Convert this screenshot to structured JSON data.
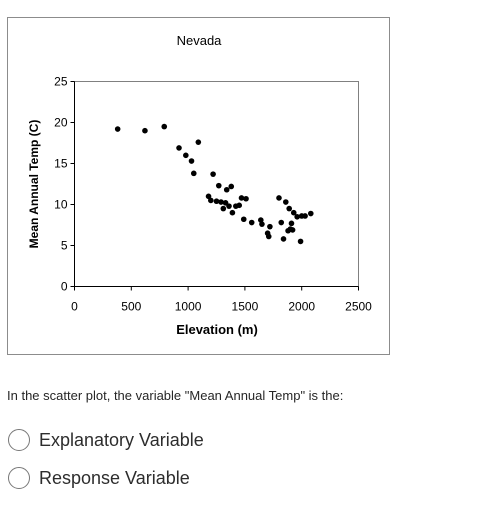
{
  "chart_data": {
    "type": "scatter",
    "title": "Nevada",
    "xlabel": "Elevation (m)",
    "ylabel": "Mean Annual Temp (C)",
    "xlim": [
      0,
      2500
    ],
    "ylim": [
      0,
      25
    ],
    "xticks": [
      0,
      500,
      1000,
      1500,
      2000,
      2500
    ],
    "yticks": [
      0,
      5,
      10,
      15,
      20,
      25
    ],
    "grid": false,
    "legend": "none",
    "point_color": "#000000",
    "points": [
      [
        380,
        19.2
      ],
      [
        620,
        19.0
      ],
      [
        790,
        19.5
      ],
      [
        920,
        16.9
      ],
      [
        980,
        16.0
      ],
      [
        1030,
        15.3
      ],
      [
        1050,
        13.8
      ],
      [
        1090,
        17.6
      ],
      [
        1180,
        11.0
      ],
      [
        1200,
        10.5
      ],
      [
        1220,
        13.7
      ],
      [
        1250,
        10.4
      ],
      [
        1270,
        12.3
      ],
      [
        1290,
        10.3
      ],
      [
        1310,
        9.5
      ],
      [
        1330,
        10.2
      ],
      [
        1340,
        11.8
      ],
      [
        1360,
        9.8
      ],
      [
        1380,
        12.2
      ],
      [
        1390,
        9.0
      ],
      [
        1420,
        9.8
      ],
      [
        1450,
        9.9
      ],
      [
        1470,
        10.8
      ],
      [
        1490,
        8.2
      ],
      [
        1510,
        10.7
      ],
      [
        1560,
        7.8
      ],
      [
        1640,
        8.1
      ],
      [
        1650,
        7.6
      ],
      [
        1700,
        6.5
      ],
      [
        1710,
        6.1
      ],
      [
        1720,
        7.3
      ],
      [
        1800,
        10.8
      ],
      [
        1820,
        7.8
      ],
      [
        1840,
        5.8
      ],
      [
        1860,
        10.3
      ],
      [
        1880,
        6.8
      ],
      [
        1890,
        9.5
      ],
      [
        1900,
        7.0
      ],
      [
        1910,
        7.7
      ],
      [
        1920,
        6.9
      ],
      [
        1930,
        9.0
      ],
      [
        1960,
        8.5
      ],
      [
        1990,
        5.5
      ],
      [
        2000,
        8.6
      ],
      [
        2030,
        8.6
      ],
      [
        2080,
        8.9
      ]
    ]
  },
  "question": {
    "text": "In the scatter plot, the variable \"Mean Annual Temp\" is the:",
    "options": [
      {
        "label": "Explanatory Variable",
        "selected": false
      },
      {
        "label": "Response Variable",
        "selected": false
      }
    ]
  }
}
